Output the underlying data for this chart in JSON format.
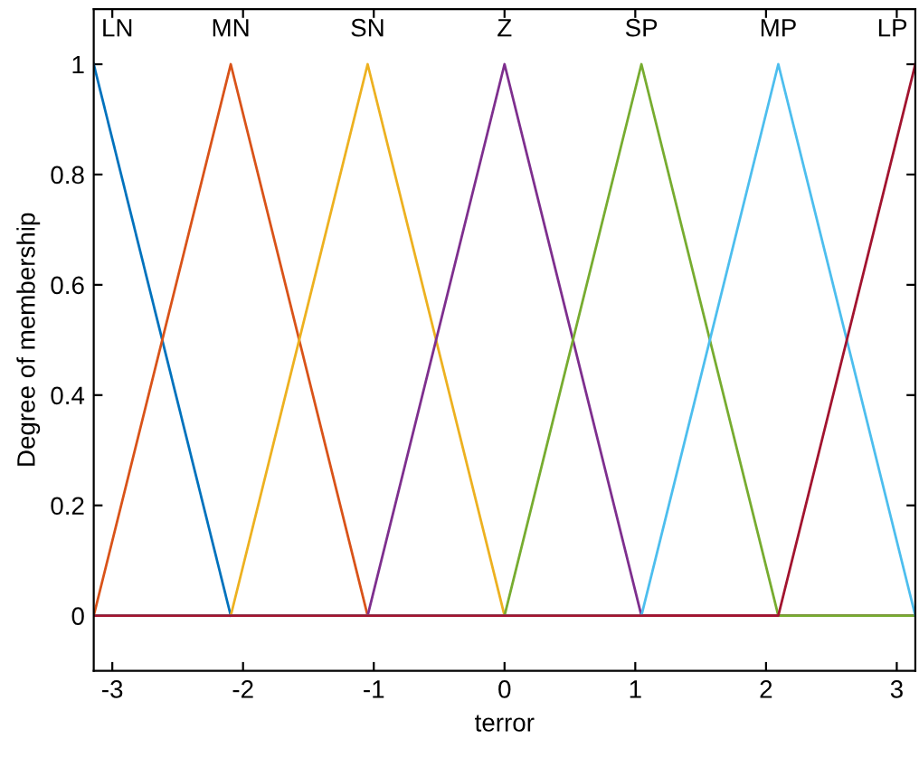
{
  "chart_data": {
    "type": "line",
    "xlabel": "terror",
    "ylabel": "Degree of membership",
    "xlim": [
      -3.142,
      3.142
    ],
    "ylim": [
      -0.1,
      1.1
    ],
    "xticks": [
      -3,
      -2,
      -1,
      0,
      1,
      2,
      3
    ],
    "yticks": [
      0,
      0.2,
      0.4,
      0.6,
      0.8,
      1
    ],
    "grid": false,
    "legend": false,
    "marker": "none",
    "line_style": "solid",
    "series": [
      {
        "name": "LN",
        "color": "#0072bd",
        "x": [
          -3.142,
          -2.094
        ],
        "values": [
          1,
          0
        ]
      },
      {
        "name": "MN",
        "color": "#d95319",
        "x": [
          -3.142,
          -2.094,
          -1.047,
          3.142
        ],
        "values": [
          0,
          1,
          0,
          0
        ]
      },
      {
        "name": "SN",
        "color": "#edb120",
        "x": [
          -3.142,
          -2.094,
          -1.047,
          0,
          3.142
        ],
        "values": [
          0,
          0,
          1,
          0,
          0
        ]
      },
      {
        "name": "Z",
        "color": "#7e2f8e",
        "x": [
          -3.142,
          -1.047,
          0,
          1.047,
          3.142
        ],
        "values": [
          0,
          0,
          1,
          0,
          0
        ]
      },
      {
        "name": "SP",
        "color": "#77ac30",
        "x": [
          -3.142,
          0,
          1.047,
          2.094,
          3.142
        ],
        "values": [
          0,
          0,
          1,
          0,
          0
        ]
      },
      {
        "name": "MP",
        "color": "#4dbeee",
        "x": [
          -3.142,
          1.047,
          2.094,
          3.142
        ],
        "values": [
          0,
          0,
          1,
          0
        ]
      },
      {
        "name": "LP",
        "color": "#a2142f",
        "x": [
          -3.142,
          2.094,
          3.142
        ],
        "values": [
          0,
          0,
          1
        ]
      }
    ]
  }
}
